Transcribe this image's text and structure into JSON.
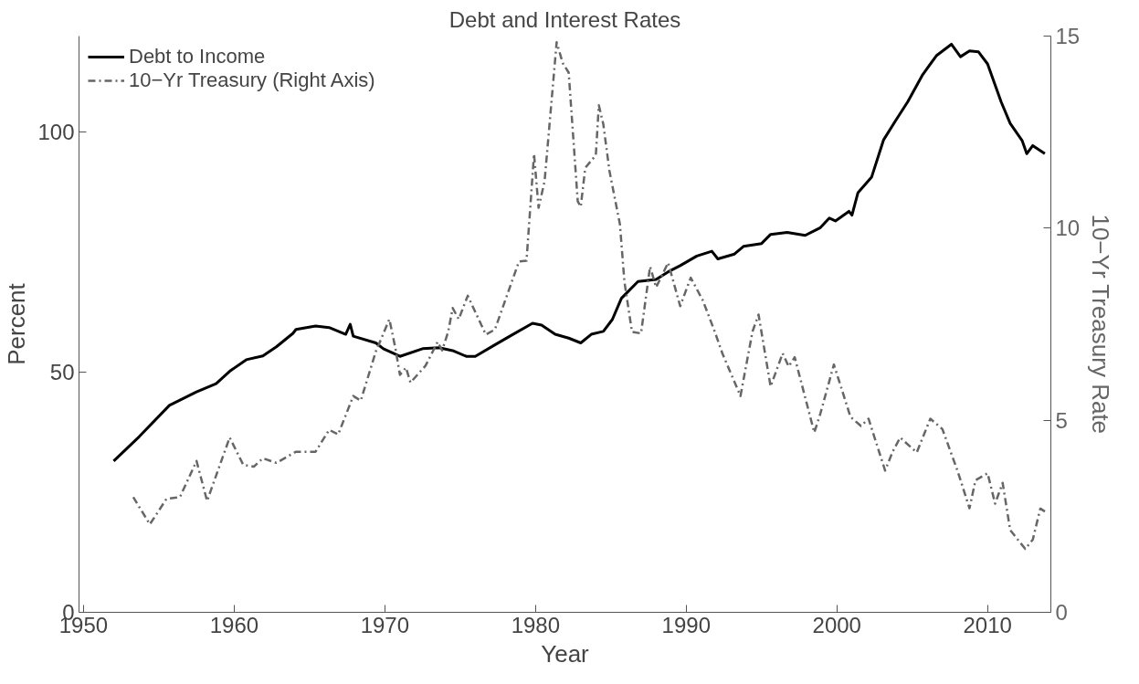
{
  "chart_data": {
    "type": "line",
    "title": "Debt and Interest Rates",
    "xlabel": "Year",
    "ylabel": "Percent",
    "y2label": "10−Yr Treasury Rate",
    "xlim": [
      1949.7,
      2014.2
    ],
    "xticks": [
      1950,
      1960,
      1970,
      1980,
      1990,
      2000,
      2010
    ],
    "ylim": [
      0,
      120
    ],
    "yticks": [
      0,
      50,
      100
    ],
    "y2lim": [
      0,
      15
    ],
    "y2ticks": [
      0,
      5,
      10,
      15
    ],
    "grid": false,
    "legend": "top left",
    "series": [
      {
        "name": "Debt to Income",
        "color": "#000000",
        "line_style": "solid",
        "x": [
          1952.0,
          1953.7,
          1955.7,
          1957.5,
          1958.8,
          1959.7,
          1960.8,
          1961.9,
          1962.8,
          1963.9,
          1964.1,
          1965.4,
          1966.3,
          1967.4,
          1967.7,
          1967.9,
          1969.4,
          1969.9,
          1971.0,
          1972.5,
          1973.6,
          1974.5,
          1975.4,
          1976.0,
          1977.3,
          1978.4,
          1979.8,
          1980.4,
          1981.3,
          1982.2,
          1983.0,
          1983.7,
          1984.5,
          1985.1,
          1985.7,
          1986.8,
          1988.0,
          1988.8,
          1989.6,
          1990.7,
          1991.7,
          1992.1,
          1993.2,
          1993.8,
          1995.0,
          1995.6,
          1996.7,
          1997.9,
          1998.9,
          1999.5,
          1999.9,
          2000.8,
          2001.0,
          2001.4,
          2002.3,
          2003.1,
          2003.9,
          2004.7,
          2005.7,
          2006.6,
          2007.6,
          2008.2,
          2008.8,
          2009.4,
          2010.0,
          2010.9,
          2011.5,
          2012.3,
          2012.6,
          2013.0,
          2013.8
        ],
        "values": [
          31.5,
          36.6,
          43.1,
          45.9,
          47.6,
          50.2,
          52.6,
          53.4,
          55.3,
          58.1,
          58.9,
          59.6,
          59.3,
          57.9,
          60.0,
          57.5,
          56.1,
          54.9,
          53.3,
          54.9,
          55.1,
          54.5,
          53.3,
          53.3,
          55.7,
          57.7,
          60.2,
          59.8,
          57.9,
          57.1,
          56.1,
          57.9,
          58.5,
          61.0,
          65.4,
          68.9,
          69.3,
          70.9,
          72.2,
          74.2,
          75.2,
          73.6,
          74.6,
          76.2,
          76.8,
          78.7,
          79.1,
          78.5,
          80.1,
          82.1,
          81.5,
          83.5,
          82.7,
          87.4,
          90.6,
          98.4,
          102.4,
          106.3,
          112.0,
          115.9,
          118.3,
          115.7,
          116.9,
          116.7,
          114.2,
          106.3,
          101.8,
          98.2,
          95.5,
          97.2,
          95.5
        ]
      },
      {
        "name": "10−Yr Treasury (Right Axis)",
        "color": "#666666",
        "line_style": "dashdot",
        "axis": "y2",
        "x": [
          1953.3,
          1954.4,
          1955.5,
          1956.4,
          1957.5,
          1958.2,
          1959.7,
          1960.6,
          1961.3,
          1961.9,
          1962.8,
          1964.1,
          1965.4,
          1966.3,
          1966.9,
          1967.9,
          1968.4,
          1969.4,
          1970.3,
          1970.7,
          1971.0,
          1971.4,
          1971.7,
          1972.7,
          1973.5,
          1973.8,
          1974.2,
          1974.5,
          1974.9,
          1975.5,
          1976.7,
          1977.3,
          1978.9,
          1979.4,
          1979.9,
          1980.2,
          1980.6,
          1981.4,
          1981.8,
          1982.2,
          1982.8,
          1983.0,
          1983.3,
          1984.0,
          1984.2,
          1984.5,
          1984.9,
          1985.6,
          1985.9,
          1986.4,
          1987.0,
          1987.6,
          1988.0,
          1988.8,
          1989.6,
          1990.3,
          1991.1,
          1991.9,
          1992.4,
          1993.6,
          1994.4,
          1994.8,
          1995.6,
          1996.4,
          1996.8,
          1997.2,
          1998.5,
          1998.9,
          1999.8,
          2000.9,
          2001.6,
          2002.1,
          2003.2,
          2003.7,
          2004.2,
          2005.3,
          2006.2,
          2007.0,
          2008.0,
          2008.8,
          2009.2,
          2010.0,
          2010.5,
          2011.0,
          2011.5,
          2012.5,
          2013.0,
          2013.5,
          2013.9
        ],
        "values": [
          3.0,
          2.29,
          2.95,
          3.0,
          3.94,
          2.9,
          4.55,
          3.84,
          3.79,
          4.01,
          3.89,
          4.18,
          4.18,
          4.75,
          4.63,
          5.63,
          5.51,
          6.79,
          7.63,
          6.87,
          6.18,
          6.37,
          5.98,
          6.42,
          7.04,
          6.82,
          7.3,
          7.92,
          7.63,
          8.24,
          7.23,
          7.36,
          9.13,
          9.15,
          11.93,
          10.53,
          11.22,
          14.84,
          14.3,
          14.05,
          10.7,
          10.56,
          11.57,
          11.9,
          13.2,
          12.7,
          11.5,
          10.1,
          8.6,
          7.3,
          7.26,
          9.0,
          8.46,
          9.1,
          7.97,
          8.71,
          8.12,
          7.3,
          6.74,
          5.63,
          7.31,
          7.75,
          5.88,
          6.74,
          6.4,
          6.64,
          4.68,
          5.17,
          6.45,
          5.09,
          4.85,
          5.04,
          3.69,
          4.18,
          4.55,
          4.16,
          5.04,
          4.77,
          3.69,
          2.71,
          3.44,
          3.62,
          2.83,
          3.37,
          2.14,
          1.65,
          1.89,
          2.7,
          2.6
        ]
      }
    ]
  }
}
